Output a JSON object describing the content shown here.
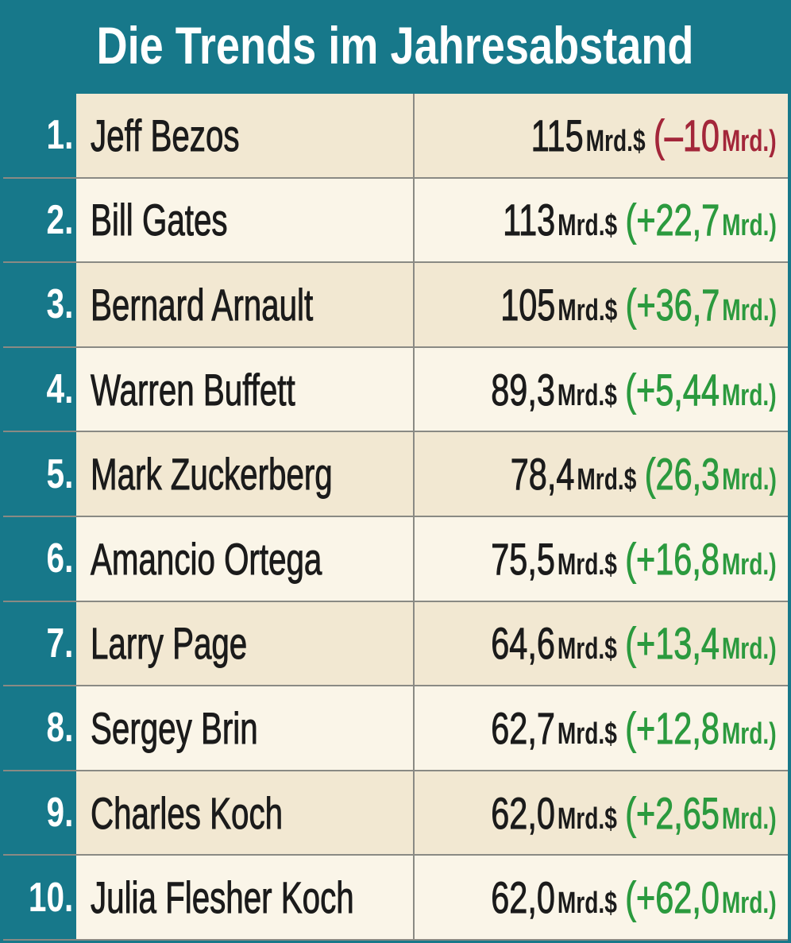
{
  "header": {
    "title": "Die Trends im Jahresabstand"
  },
  "table": {
    "rows": [
      {
        "rank": "1.",
        "name": "Jeff Bezos",
        "value": "115",
        "unit": "Mrd.$",
        "change": "(–10",
        "change_unit": "Mrd.)",
        "change_color": "#a3263a"
      },
      {
        "rank": "2.",
        "name": "Bill Gates",
        "value": "113",
        "unit": "Mrd.$",
        "change": "(+22,7",
        "change_unit": "Mrd.)",
        "change_color": "#2b9a3e"
      },
      {
        "rank": "3.",
        "name": "Bernard Arnault",
        "value": "105",
        "unit": "Mrd.$",
        "change": "(+36,7",
        "change_unit": "Mrd.)",
        "change_color": "#2b9a3e"
      },
      {
        "rank": "4.",
        "name": "Warren Buffett",
        "value": "89,3",
        "unit": "Mrd.$",
        "change": "(+5,44",
        "change_unit": "Mrd.)",
        "change_color": "#2b9a3e"
      },
      {
        "rank": "5.",
        "name": "Mark Zuckerberg",
        "value": "78,4",
        "unit": "Mrd.$",
        "change": "(26,3",
        "change_unit": "Mrd.)",
        "change_color": "#2b9a3e"
      },
      {
        "rank": "6.",
        "name": "Amancio Ortega",
        "value": "75,5",
        "unit": "Mrd.$",
        "change": "(+16,8",
        "change_unit": "Mrd.)",
        "change_color": "#2b9a3e"
      },
      {
        "rank": "7.",
        "name": "Larry Page",
        "value": "64,6",
        "unit": "Mrd.$",
        "change": "(+13,4",
        "change_unit": "Mrd.)",
        "change_color": "#2b9a3e"
      },
      {
        "rank": "8.",
        "name": "Sergey Brin",
        "value": "62,7",
        "unit": "Mrd.$",
        "change": "(+12,8",
        "change_unit": "Mrd.)",
        "change_color": "#2b9a3e"
      },
      {
        "rank": "9.",
        "name": "Charles Koch",
        "value": "62,0",
        "unit": "Mrd.$",
        "change": "(+2,65",
        "change_unit": "Mrd.)",
        "change_color": "#2b9a3e"
      },
      {
        "rank": "10.",
        "name": "Julia Flesher Koch",
        "value": "62,0",
        "unit": "Mrd.$",
        "change": "(+62,0",
        "change_unit": "Mrd.)",
        "change_color": "#2b9a3e"
      }
    ]
  }
}
